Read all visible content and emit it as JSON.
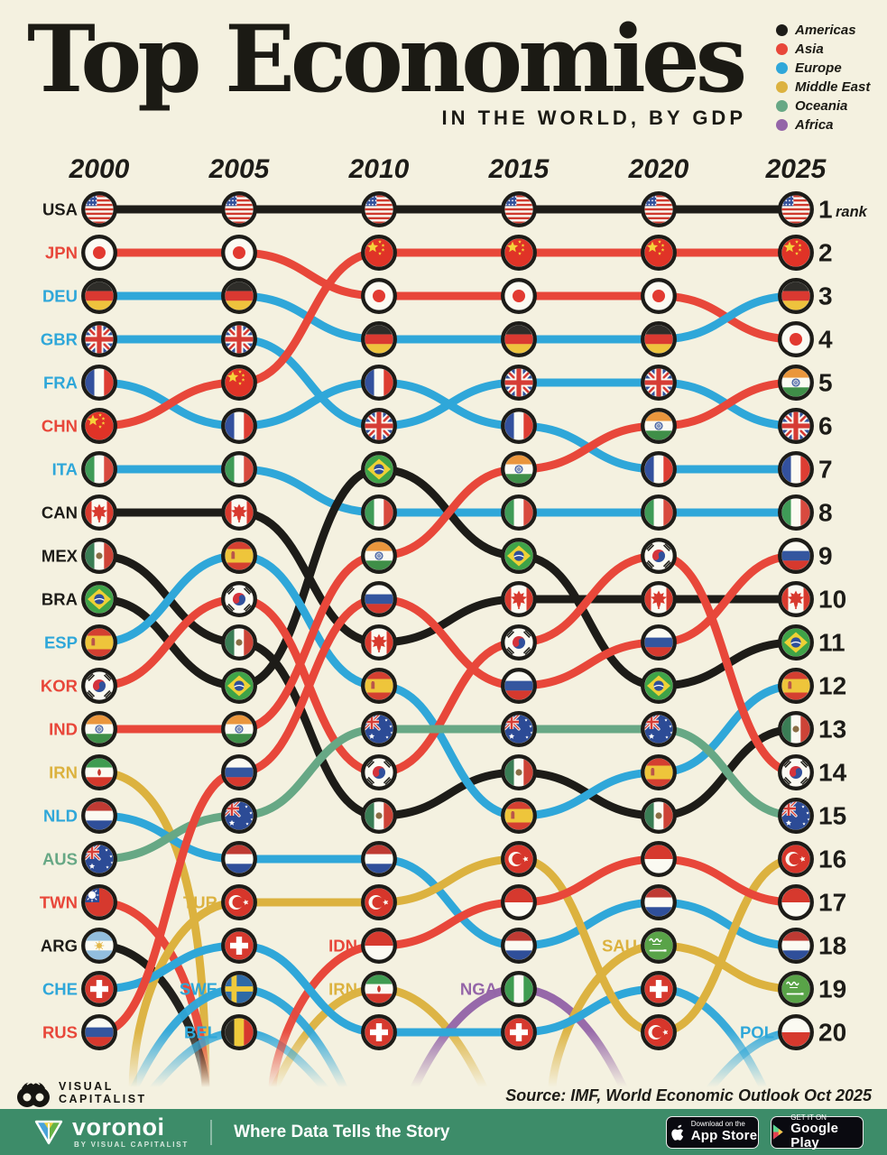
{
  "header": {
    "title": "Top Economies",
    "subtitle": "IN THE WORLD, BY GDP",
    "legend": [
      {
        "label": "Americas",
        "color": "#1d1c18"
      },
      {
        "label": "Asia",
        "color": "#e8473a"
      },
      {
        "label": "Europe",
        "color": "#2fa7d9"
      },
      {
        "label": "Middle East",
        "color": "#dcb23f"
      },
      {
        "label": "Oceania",
        "color": "#67a885"
      },
      {
        "label": "Africa",
        "color": "#9465a8"
      }
    ]
  },
  "chart_data": {
    "type": "bump",
    "title": "Top Economies in the World, by GDP",
    "years": [
      2000,
      2005,
      2010,
      2015,
      2020,
      2025
    ],
    "rank_axis": {
      "label": "rank",
      "min": 1,
      "max": 20
    },
    "region_colors": {
      "Americas": "#1d1c18",
      "Asia": "#e8473a",
      "Europe": "#2fa7d9",
      "Middle East": "#dcb23f",
      "Oceania": "#67a885",
      "Africa": "#9465a8"
    },
    "series": [
      {
        "code": "USA",
        "region": "Americas",
        "ranks": [
          1,
          1,
          1,
          1,
          1,
          1
        ]
      },
      {
        "code": "JPN",
        "region": "Asia",
        "ranks": [
          2,
          2,
          3,
          3,
          3,
          4
        ]
      },
      {
        "code": "DEU",
        "region": "Europe",
        "ranks": [
          3,
          3,
          4,
          4,
          4,
          3
        ]
      },
      {
        "code": "GBR",
        "region": "Europe",
        "ranks": [
          4,
          4,
          6,
          5,
          5,
          6
        ]
      },
      {
        "code": "FRA",
        "region": "Europe",
        "ranks": [
          5,
          6,
          5,
          6,
          7,
          7
        ]
      },
      {
        "code": "CHN",
        "region": "Asia",
        "ranks": [
          6,
          5,
          2,
          2,
          2,
          2
        ]
      },
      {
        "code": "ITA",
        "region": "Europe",
        "ranks": [
          7,
          7,
          8,
          8,
          8,
          8
        ]
      },
      {
        "code": "CAN",
        "region": "Americas",
        "ranks": [
          8,
          8,
          11,
          10,
          10,
          10
        ]
      },
      {
        "code": "MEX",
        "region": "Americas",
        "ranks": [
          9,
          11,
          15,
          14,
          15,
          13
        ]
      },
      {
        "code": "BRA",
        "region": "Americas",
        "ranks": [
          10,
          12,
          7,
          9,
          12,
          11
        ]
      },
      {
        "code": "ESP",
        "region": "Europe",
        "ranks": [
          11,
          9,
          12,
          15,
          14,
          12
        ]
      },
      {
        "code": "KOR",
        "region": "Asia",
        "ranks": [
          12,
          10,
          14,
          11,
          9,
          14
        ]
      },
      {
        "code": "IND",
        "region": "Asia",
        "ranks": [
          13,
          13,
          9,
          7,
          6,
          5
        ]
      },
      {
        "code": "IRN",
        "region": "Middle East",
        "ranks": [
          14,
          null,
          19,
          null,
          null,
          null
        ]
      },
      {
        "code": "NLD",
        "region": "Europe",
        "ranks": [
          15,
          16,
          16,
          18,
          17,
          18
        ]
      },
      {
        "code": "AUS",
        "region": "Oceania",
        "ranks": [
          16,
          15,
          13,
          13,
          13,
          15
        ]
      },
      {
        "code": "TWN",
        "region": "Asia",
        "ranks": [
          17,
          null,
          null,
          null,
          null,
          null
        ]
      },
      {
        "code": "ARG",
        "region": "Americas",
        "ranks": [
          18,
          null,
          null,
          null,
          null,
          null
        ]
      },
      {
        "code": "CHE",
        "region": "Europe",
        "ranks": [
          19,
          18,
          20,
          20,
          19,
          null
        ]
      },
      {
        "code": "RUS",
        "region": "Asia",
        "ranks": [
          20,
          14,
          10,
          12,
          11,
          9
        ]
      },
      {
        "code": "TUR",
        "region": "Middle East",
        "ranks": [
          null,
          17,
          17,
          16,
          20,
          16
        ]
      },
      {
        "code": "SWE",
        "region": "Europe",
        "ranks": [
          null,
          19,
          null,
          null,
          null,
          null
        ]
      },
      {
        "code": "BEL",
        "region": "Europe",
        "ranks": [
          null,
          20,
          null,
          null,
          null,
          null
        ]
      },
      {
        "code": "IDN",
        "region": "Asia",
        "ranks": [
          null,
          null,
          18,
          17,
          16,
          17
        ]
      },
      {
        "code": "NGA",
        "region": "Africa",
        "ranks": [
          null,
          null,
          null,
          19,
          null,
          null
        ]
      },
      {
        "code": "SAU",
        "region": "Middle East",
        "ranks": [
          null,
          null,
          null,
          null,
          18,
          19
        ]
      },
      {
        "code": "POL",
        "region": "Europe",
        "ranks": [
          null,
          null,
          null,
          null,
          null,
          20
        ]
      }
    ]
  },
  "footer": {
    "attribution": {
      "line1": "VISUAL",
      "line2": "CAPITALIST",
      "icon": "binoculars-icon"
    },
    "source": "Source: IMF, World Economic Outlook Oct 2025",
    "bar": {
      "brand": "voronoi",
      "by": "BY VISUAL CAPITALIST",
      "tagline": "Where Data Tells the Story",
      "brand_icon": "voronoi-logo-icon",
      "badges": [
        {
          "store": "app-store",
          "icon": "apple-icon",
          "line1": "Download on the",
          "line2": "App Store"
        },
        {
          "store": "google-play",
          "icon": "play-icon",
          "line1": "GET IT ON",
          "line2": "Google Play"
        }
      ]
    }
  }
}
